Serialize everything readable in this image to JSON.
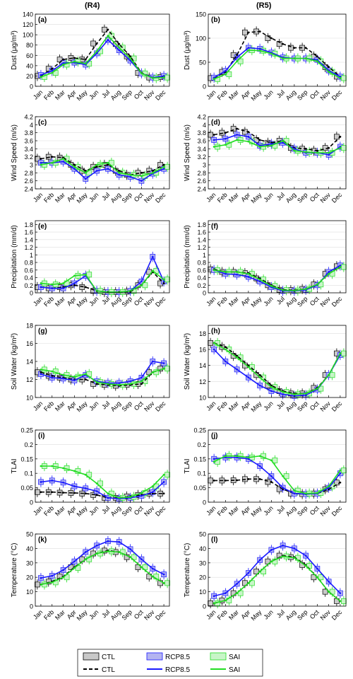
{
  "figure": {
    "column_titles": [
      "(R4)",
      "(R5)"
    ],
    "months": [
      "Jan",
      "Feb",
      "Mar",
      "Apr",
      "May",
      "Jun",
      "Jul",
      "Aug",
      "Sep",
      "Oct",
      "Nov",
      "Dec"
    ],
    "colors": {
      "CTL": "#000000",
      "CTL_box": "#c8c8c8",
      "RCP8.5": "#1a1aff",
      "RCP8.5_box": "#b4b4f0",
      "SAI": "#22dd22",
      "SAI_box": "#c8f5c8",
      "outlier": "#e05a1e",
      "grid": "#dddddd"
    },
    "legend": {
      "box_entries": [
        "CTL",
        "RCP8.5",
        "SAI"
      ],
      "line_entries": [
        "CTL",
        "RCP8.5",
        "SAI"
      ]
    }
  },
  "chart_data": [
    {
      "panel": "(a)",
      "column": "R4",
      "type": "line",
      "ylabel": "Dust (μg/m³)",
      "ylim": [
        0,
        140
      ],
      "yticks": [
        0,
        20,
        40,
        60,
        80,
        100,
        120,
        140
      ],
      "series": [
        {
          "name": "CTL",
          "values": [
            20,
            34,
            52,
            55,
            52,
            83,
            110,
            82,
            58,
            26,
            17,
            18
          ]
        },
        {
          "name": "RCP8.5",
          "values": [
            22,
            30,
            45,
            46,
            42,
            64,
            90,
            70,
            50,
            25,
            17,
            20
          ]
        },
        {
          "name": "SAI",
          "values": [
            18,
            26,
            42,
            48,
            44,
            68,
            98,
            75,
            54,
            25,
            16,
            17
          ]
        }
      ]
    },
    {
      "panel": "(b)",
      "column": "R5",
      "type": "line",
      "ylabel": "Dust (μg/m³)",
      "ylim": [
        0,
        150
      ],
      "yticks": [
        0,
        50,
        100,
        150
      ],
      "series": [
        {
          "name": "CTL",
          "values": [
            17,
            30,
            65,
            112,
            114,
            100,
            88,
            80,
            80,
            62,
            40,
            20
          ]
        },
        {
          "name": "RCP8.5",
          "values": [
            18,
            32,
            60,
            80,
            78,
            70,
            60,
            58,
            58,
            55,
            33,
            20
          ]
        },
        {
          "name": "SAI",
          "values": [
            15,
            25,
            52,
            75,
            74,
            68,
            58,
            58,
            58,
            52,
            30,
            17
          ]
        }
      ]
    },
    {
      "panel": "(c)",
      "column": "R4",
      "type": "line",
      "ylabel": "Wind Speed (m/s)",
      "ylim": [
        2.4,
        4.2
      ],
      "yticks": [
        2.4,
        2.6,
        2.8,
        3.0,
        3.2,
        3.4,
        3.6,
        3.8,
        4.0,
        4.2
      ],
      "series": [
        {
          "name": "CTL",
          "values": [
            3.15,
            3.2,
            3.18,
            3.0,
            2.85,
            2.95,
            3.0,
            2.85,
            2.75,
            2.8,
            2.85,
            3.0
          ]
        },
        {
          "name": "RCP8.5",
          "values": [
            3.05,
            3.05,
            3.08,
            2.9,
            2.65,
            2.85,
            2.9,
            2.75,
            2.7,
            2.6,
            2.78,
            2.9
          ]
        },
        {
          "name": "SAI",
          "values": [
            3.0,
            3.05,
            3.15,
            2.95,
            2.8,
            3.0,
            3.05,
            2.8,
            2.75,
            2.72,
            2.8,
            2.95
          ]
        }
      ]
    },
    {
      "panel": "(d)",
      "column": "R5",
      "type": "line",
      "ylabel": "Wind Speed (m/s)",
      "ylim": [
        2.4,
        4.2
      ],
      "yticks": [
        2.4,
        2.6,
        2.8,
        3.0,
        3.2,
        3.4,
        3.6,
        3.8,
        4.0,
        4.2
      ],
      "series": [
        {
          "name": "CTL",
          "values": [
            3.75,
            3.8,
            3.9,
            3.82,
            3.62,
            3.55,
            3.6,
            3.42,
            3.4,
            3.35,
            3.42,
            3.7
          ]
        },
        {
          "name": "RCP8.5",
          "values": [
            3.62,
            3.65,
            3.75,
            3.7,
            3.48,
            3.52,
            3.55,
            3.4,
            3.3,
            3.3,
            3.25,
            3.45
          ]
        },
        {
          "name": "SAI",
          "values": [
            3.45,
            3.5,
            3.62,
            3.58,
            3.45,
            3.48,
            3.6,
            3.35,
            3.32,
            3.3,
            3.3,
            3.42
          ]
        }
      ]
    },
    {
      "panel": "(e)",
      "column": "R4",
      "type": "line",
      "ylabel": "Precipitation (mm/d)",
      "ylim": [
        0,
        1.9
      ],
      "yticks": [
        0,
        0.2,
        0.4,
        0.6,
        0.8,
        1.0,
        1.2,
        1.4,
        1.6,
        1.8
      ],
      "series": [
        {
          "name": "CTL",
          "values": [
            0.15,
            0.12,
            0.15,
            0.2,
            0.15,
            0.05,
            0.02,
            0.02,
            0.03,
            0.2,
            0.55,
            0.25
          ]
        },
        {
          "name": "RCP8.5",
          "values": [
            0.15,
            0.12,
            0.12,
            0.25,
            0.45,
            0.05,
            0.02,
            0.02,
            0.05,
            0.3,
            0.95,
            0.3
          ]
        },
        {
          "name": "SAI",
          "values": [
            0.25,
            0.22,
            0.25,
            0.45,
            0.48,
            0.05,
            0.02,
            0.02,
            0.05,
            0.2,
            0.58,
            0.35
          ]
        }
      ]
    },
    {
      "panel": "(f)",
      "column": "R5",
      "type": "line",
      "ylabel": "Precipitation (mm/d)",
      "ylim": [
        0,
        1.9
      ],
      "yticks": [
        0,
        0.2,
        0.4,
        0.6,
        0.8,
        1.0,
        1.2,
        1.4,
        1.6,
        1.8
      ],
      "series": [
        {
          "name": "CTL",
          "values": [
            0.62,
            0.55,
            0.55,
            0.52,
            0.38,
            0.2,
            0.08,
            0.07,
            0.1,
            0.22,
            0.5,
            0.7
          ]
        },
        {
          "name": "RCP8.5",
          "values": [
            0.6,
            0.5,
            0.48,
            0.42,
            0.3,
            0.15,
            0.05,
            0.05,
            0.08,
            0.2,
            0.55,
            0.72
          ]
        },
        {
          "name": "SAI",
          "values": [
            0.6,
            0.55,
            0.55,
            0.5,
            0.35,
            0.18,
            0.07,
            0.06,
            0.1,
            0.22,
            0.5,
            0.68
          ]
        }
      ]
    },
    {
      "panel": "(g)",
      "column": "R4",
      "type": "line",
      "ylabel": "Soil Water (kg/m²)",
      "ylim": [
        10,
        18
      ],
      "yticks": [
        10,
        12,
        14,
        16,
        18
      ],
      "series": [
        {
          "name": "CTL",
          "values": [
            12.8,
            12.4,
            12.2,
            12.0,
            12.0,
            11.5,
            11.4,
            11.3,
            11.4,
            11.5,
            12.8,
            13.2
          ]
        },
        {
          "name": "RCP8.5",
          "values": [
            12.6,
            12.2,
            12.1,
            11.9,
            12.5,
            11.8,
            11.6,
            11.6,
            11.8,
            12.2,
            14.0,
            13.8
          ]
        },
        {
          "name": "SAI",
          "values": [
            13.1,
            12.9,
            12.5,
            12.3,
            12.6,
            11.7,
            11.5,
            11.4,
            11.5,
            11.8,
            12.8,
            13.2
          ]
        }
      ]
    },
    {
      "panel": "(h)",
      "column": "R5",
      "type": "line",
      "ylabel": "Soil Water (kg/m²)",
      "ylim": [
        10,
        19
      ],
      "yticks": [
        10,
        12,
        14,
        16,
        18
      ],
      "series": [
        {
          "name": "CTL",
          "values": [
            16.8,
            16.3,
            15.2,
            14.0,
            12.8,
            11.5,
            10.8,
            10.5,
            10.5,
            11.2,
            12.8,
            15.5
          ]
        },
        {
          "name": "RCP8.5",
          "values": [
            16.0,
            14.5,
            13.5,
            12.5,
            11.5,
            10.8,
            10.4,
            10.2,
            10.3,
            11.0,
            12.8,
            15.3
          ]
        },
        {
          "name": "SAI",
          "values": [
            16.8,
            16.0,
            15.0,
            13.8,
            12.5,
            11.3,
            10.7,
            10.4,
            10.5,
            11.1,
            12.8,
            15.5
          ]
        }
      ]
    },
    {
      "panel": "(i)",
      "column": "R4",
      "type": "line",
      "ylabel": "TLAI",
      "ylim": [
        0,
        0.25
      ],
      "yticks": [
        0,
        0.05,
        0.1,
        0.15,
        0.2,
        0.25
      ],
      "series": [
        {
          "name": "CTL",
          "values": [
            0.035,
            0.035,
            0.033,
            0.032,
            0.03,
            0.025,
            0.015,
            0.015,
            0.02,
            0.025,
            0.03,
            0.03
          ]
        },
        {
          "name": "RCP8.5",
          "values": [
            0.07,
            0.075,
            0.068,
            0.055,
            0.048,
            0.038,
            0.015,
            0.012,
            0.015,
            0.022,
            0.035,
            0.07
          ]
        },
        {
          "name": "SAI",
          "values": [
            0.125,
            0.125,
            0.118,
            0.108,
            0.095,
            0.065,
            0.03,
            0.015,
            0.018,
            0.032,
            0.055,
            0.095
          ]
        }
      ]
    },
    {
      "panel": "(j)",
      "column": "R5",
      "type": "line",
      "ylabel": "TLAI",
      "ylim": [
        0,
        0.25
      ],
      "yticks": [
        0,
        0.05,
        0.1,
        0.15,
        0.2,
        0.25
      ],
      "series": [
        {
          "name": "CTL",
          "values": [
            0.075,
            0.075,
            0.076,
            0.08,
            0.08,
            0.07,
            0.045,
            0.03,
            0.028,
            0.03,
            0.045,
            0.068
          ]
        },
        {
          "name": "RCP8.5",
          "values": [
            0.15,
            0.155,
            0.155,
            0.15,
            0.125,
            0.09,
            0.05,
            0.03,
            0.028,
            0.03,
            0.05,
            0.1
          ]
        },
        {
          "name": "SAI",
          "values": [
            0.14,
            0.16,
            0.16,
            0.155,
            0.16,
            0.145,
            0.09,
            0.04,
            0.03,
            0.032,
            0.055,
            0.11
          ]
        }
      ]
    },
    {
      "panel": "(k)",
      "column": "R4",
      "type": "line",
      "ylabel": "Temperature (°C)",
      "ylim": [
        0,
        50
      ],
      "yticks": [
        0,
        10,
        20,
        30,
        40,
        50
      ],
      "series": [
        {
          "name": "CTL",
          "values": [
            15,
            17,
            20.5,
            27,
            32.5,
            36.5,
            38.5,
            37.5,
            34,
            27,
            20.5,
            16
          ]
        },
        {
          "name": "RCP8.5",
          "values": [
            19.5,
            21,
            25,
            31,
            37.5,
            42,
            45,
            44.5,
            39.5,
            32.5,
            26,
            22
          ]
        },
        {
          "name": "SAI",
          "values": [
            15,
            16.5,
            20,
            26.5,
            32.5,
            36.5,
            38,
            37.5,
            34,
            27,
            20.5,
            16
          ]
        }
      ]
    },
    {
      "panel": "(l)",
      "column": "R5",
      "type": "line",
      "ylabel": "Temperature (°C)",
      "ylim": [
        0,
        50
      ],
      "yticks": [
        0,
        10,
        20,
        30,
        40,
        50
      ],
      "series": [
        {
          "name": "CTL",
          "values": [
            2,
            4,
            9,
            16,
            24,
            31,
            35,
            34,
            28.5,
            20,
            10,
            3.5
          ]
        },
        {
          "name": "RCP8.5",
          "values": [
            7,
            9,
            15.5,
            23,
            32,
            39,
            42,
            40,
            35,
            26,
            17,
            9
          ]
        },
        {
          "name": "SAI",
          "values": [
            2,
            4,
            9,
            16,
            24,
            31,
            34.5,
            33.5,
            28,
            20,
            10,
            3.5
          ]
        }
      ]
    }
  ]
}
